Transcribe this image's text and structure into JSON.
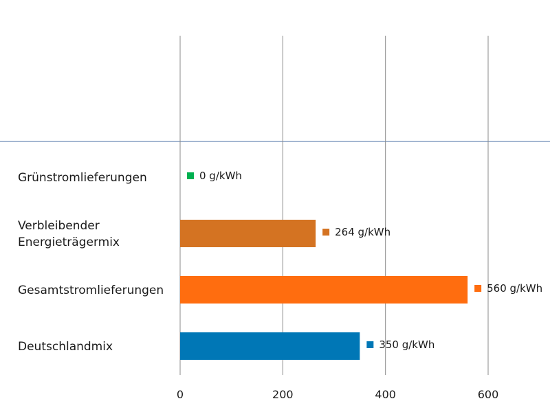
{
  "chart_data": {
    "type": "bar",
    "orientation": "horizontal",
    "title": "",
    "xlabel": "",
    "ylabel": "",
    "xlim": [
      0,
      600
    ],
    "ticks": [
      0,
      200,
      400,
      600
    ],
    "tick_labels": [
      "0",
      "200",
      "400",
      "600"
    ],
    "grid": "vertical",
    "legend": "none",
    "unit": "g/kWh",
    "categories": [
      {
        "label_lines": [
          "Grünstromlieferungen"
        ],
        "value": 0,
        "label": "0 g/kWh",
        "color": "#00b050"
      },
      {
        "label_lines": [
          "Verbleibender",
          "Energieträgermix"
        ],
        "value": 264,
        "label": "264 g/kWh",
        "color": "#d47322"
      },
      {
        "label_lines": [
          "Gesamtstromlieferungen"
        ],
        "value": 560,
        "label": "560 g/kWh",
        "color": "#ff6d0f"
      },
      {
        "label_lines": [
          "Deutschlandmix"
        ],
        "value": 350,
        "label": "350 g/kWh",
        "color": "#0077b6"
      }
    ]
  },
  "colors": {
    "gridline": "#8a8a8a",
    "separator": "#4a6fa5"
  }
}
